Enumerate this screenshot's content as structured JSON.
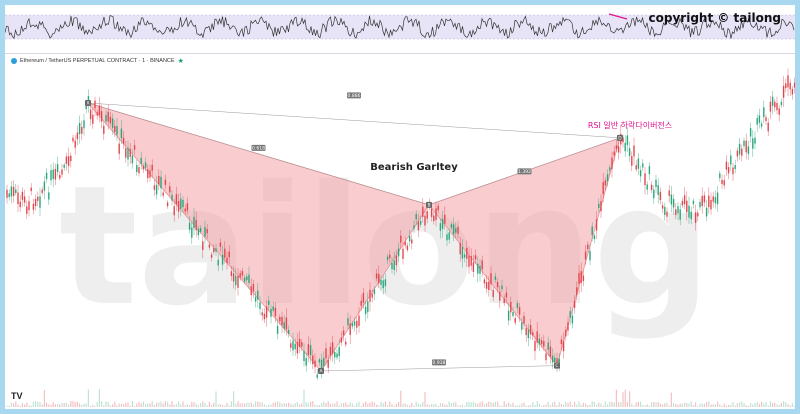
{
  "watermark_top": "copyright © tailong",
  "watermark_bg": "tailong",
  "symbol": {
    "text": "Ethereum / TetherUS PERPETUAL CONTRACT · 1 · BINANCE",
    "star": "★"
  },
  "tv_logo": "TV",
  "colors": {
    "pattern_fill": "#f4a3a8",
    "pattern_stroke": "#ee8f96",
    "candle_up": "#2aa57a",
    "candle_down": "#e0464e",
    "rsi_line": "#333333",
    "rsi_band": "#e8e4f8",
    "divergence": "#e0138c",
    "annotation": "#e0138c",
    "frame": "#a8d8f0"
  },
  "chart_data": {
    "type": "candlestick",
    "title": "Bearish Garltey",
    "annotation": "RSI 일반 하락다이버전스",
    "pattern": {
      "name": "Bearish Garltey",
      "points": [
        {
          "label": "X",
          "index": 0,
          "price": 100
        },
        {
          "label": "A",
          "index": 1,
          "price": 0
        },
        {
          "label": "B",
          "index": 2,
          "price": 62
        },
        {
          "label": "C",
          "index": 3,
          "price": 2
        },
        {
          "label": "D",
          "index": 4,
          "price": 87
        }
      ],
      "ratios": [
        {
          "between": "X-B",
          "value": "0.618"
        },
        {
          "between": "X-D",
          "value": "0.886"
        },
        {
          "between": "A-C",
          "value": "0.938"
        },
        {
          "between": "B-D",
          "value": "1.392"
        }
      ]
    },
    "grid": false,
    "legend": "none"
  }
}
